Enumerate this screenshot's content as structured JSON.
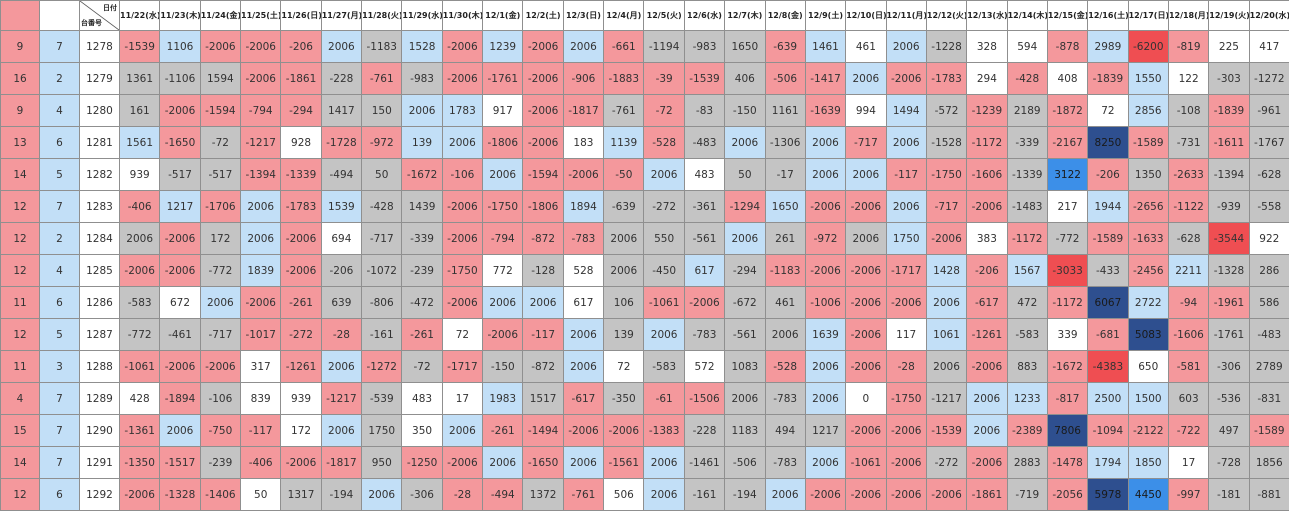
{
  "header": {
    "date_label": "日付",
    "machine_label": "台番号",
    "dates": [
      "11/22(水)",
      "11/23(木)",
      "11/24(金)",
      "11/25(土)",
      "11/26(日)",
      "11/27(月)",
      "11/28(火)",
      "11/29(水)",
      "11/30(木)",
      "12/1(金)",
      "12/2(土)",
      "12/3(日)",
      "12/4(月)",
      "12/5(火)",
      "12/6(水)",
      "12/7(木)",
      "12/8(金)",
      "12/9(土)",
      "12/10(日)",
      "12/11(月)",
      "12/12(火)",
      "12/13(水)",
      "12/14(木)",
      "12/15(金)",
      "12/16(土)",
      "12/17(日)",
      "12/18(月)",
      "12/19(火)",
      "12/20(水)"
    ]
  },
  "colors": {
    "pink": "#f4989c",
    "gray": "#c4c4c4",
    "light_blue": "#c2dff7",
    "white": "#ffffff",
    "red": "#ef4e52",
    "medium_blue": "#3c8fe8",
    "navy": "#2e4f8f"
  },
  "rows": [
    {
      "a": "9",
      "b": "7",
      "machine": "1278",
      "values": [
        "-1539",
        "1106",
        "-2006",
        "-2006",
        "-206",
        "2006",
        "-1183",
        "1528",
        "-2006",
        "1239",
        "-2006",
        "2006",
        "-661",
        "-1194",
        "-983",
        "1650",
        "-639",
        "1461",
        "461",
        "2006",
        "-1228",
        "328",
        "594",
        "-878",
        "2989",
        "-6200",
        "-819",
        "225",
        "417"
      ],
      "colors": [
        "pink",
        "lblue",
        "pink",
        "pink",
        "pink",
        "lblue",
        "gray",
        "lblue",
        "pink",
        "lblue",
        "pink",
        "lblue",
        "pink",
        "gray",
        "gray",
        "gray",
        "pink",
        "lblue",
        "white",
        "lblue",
        "gray",
        "white",
        "white",
        "pink",
        "lblue",
        "red",
        "pink",
        "white",
        "white"
      ]
    },
    {
      "a": "16",
      "b": "2",
      "machine": "1279",
      "values": [
        "1361",
        "-1106",
        "1594",
        "-2006",
        "-1861",
        "-228",
        "-761",
        "-983",
        "-2006",
        "-1761",
        "-2006",
        "-906",
        "-1883",
        "-39",
        "-1539",
        "406",
        "-506",
        "-1417",
        "2006",
        "-2006",
        "-1783",
        "294",
        "-428",
        "408",
        "-1839",
        "1550",
        "122",
        "-303",
        "-1272"
      ],
      "colors": [
        "gray",
        "gray",
        "gray",
        "pink",
        "pink",
        "gray",
        "pink",
        "gray",
        "pink",
        "pink",
        "pink",
        "pink",
        "pink",
        "pink",
        "pink",
        "gray",
        "pink",
        "pink",
        "lblue",
        "pink",
        "pink",
        "white",
        "pink",
        "white",
        "pink",
        "lblue",
        "white",
        "gray",
        "gray"
      ]
    },
    {
      "a": "9",
      "b": "4",
      "machine": "1280",
      "values": [
        "161",
        "-2006",
        "-1594",
        "-794",
        "-294",
        "1417",
        "150",
        "2006",
        "1783",
        "917",
        "-2006",
        "-1817",
        "-761",
        "-72",
        "-83",
        "-150",
        "1161",
        "-1639",
        "994",
        "1494",
        "-572",
        "-1239",
        "2189",
        "-1872",
        "72",
        "2856",
        "-108",
        "-1839",
        "-961"
      ],
      "colors": [
        "gray",
        "pink",
        "pink",
        "pink",
        "pink",
        "gray",
        "gray",
        "lblue",
        "lblue",
        "white",
        "pink",
        "pink",
        "gray",
        "pink",
        "gray",
        "gray",
        "gray",
        "pink",
        "white",
        "lblue",
        "gray",
        "pink",
        "gray",
        "pink",
        "white",
        "lblue",
        "gray",
        "pink",
        "gray"
      ]
    },
    {
      "a": "13",
      "b": "6",
      "machine": "1281",
      "values": [
        "1561",
        "-1650",
        "-72",
        "-1217",
        "928",
        "-1728",
        "-972",
        "139",
        "2006",
        "-1806",
        "-2006",
        "183",
        "1139",
        "-528",
        "-483",
        "2006",
        "-1306",
        "2006",
        "-717",
        "2006",
        "-1528",
        "-1172",
        "-339",
        "-2167",
        "8250",
        "-1589",
        "-731",
        "-1611",
        "-1767"
      ],
      "colors": [
        "lblue",
        "pink",
        "gray",
        "pink",
        "white",
        "pink",
        "pink",
        "lblue",
        "lblue",
        "pink",
        "pink",
        "white",
        "lblue",
        "pink",
        "gray",
        "lblue",
        "gray",
        "lblue",
        "pink",
        "lblue",
        "gray",
        "pink",
        "gray",
        "pink",
        "navy",
        "pink",
        "gray",
        "pink",
        "gray"
      ]
    },
    {
      "a": "14",
      "b": "5",
      "machine": "1282",
      "values": [
        "939",
        "-517",
        "-517",
        "-1394",
        "-1339",
        "-494",
        "50",
        "-1672",
        "-106",
        "2006",
        "-1594",
        "-2006",
        "-50",
        "2006",
        "483",
        "50",
        "-17",
        "2006",
        "2006",
        "-117",
        "-1750",
        "-1606",
        "-1339",
        "3122",
        "-206",
        "1350",
        "-2633",
        "-1394",
        "-628"
      ],
      "colors": [
        "white",
        "gray",
        "gray",
        "pink",
        "pink",
        "gray",
        "gray",
        "pink",
        "pink",
        "lblue",
        "pink",
        "pink",
        "pink",
        "lblue",
        "white",
        "gray",
        "gray",
        "lblue",
        "lblue",
        "pink",
        "pink",
        "pink",
        "gray",
        "mblue",
        "pink",
        "gray",
        "pink",
        "gray",
        "gray"
      ]
    },
    {
      "a": "12",
      "b": "7",
      "machine": "1283",
      "values": [
        "-406",
        "1217",
        "-1706",
        "2006",
        "-1783",
        "1539",
        "-428",
        "1439",
        "-2006",
        "-1750",
        "-1806",
        "1894",
        "-639",
        "-272",
        "-361",
        "-1294",
        "1650",
        "-2006",
        "-2006",
        "2006",
        "-717",
        "-2006",
        "-1483",
        "217",
        "1944",
        "-2656",
        "-1122",
        "-939",
        "-558"
      ],
      "colors": [
        "pink",
        "lblue",
        "pink",
        "lblue",
        "pink",
        "lblue",
        "gray",
        "gray",
        "pink",
        "pink",
        "pink",
        "lblue",
        "gray",
        "gray",
        "gray",
        "pink",
        "lblue",
        "pink",
        "pink",
        "lblue",
        "pink",
        "pink",
        "gray",
        "white",
        "lblue",
        "pink",
        "pink",
        "gray",
        "gray"
      ]
    },
    {
      "a": "12",
      "b": "2",
      "machine": "1284",
      "values": [
        "2006",
        "-2006",
        "172",
        "2006",
        "-2006",
        "694",
        "-717",
        "-339",
        "-2006",
        "-794",
        "-872",
        "-783",
        "2006",
        "550",
        "-561",
        "2006",
        "261",
        "-972",
        "2006",
        "1750",
        "-2006",
        "383",
        "-1172",
        "-772",
        "-1589",
        "-1633",
        "-628",
        "-3544",
        "922"
      ],
      "colors": [
        "gray",
        "pink",
        "gray",
        "lblue",
        "pink",
        "white",
        "gray",
        "gray",
        "pink",
        "pink",
        "pink",
        "pink",
        "gray",
        "gray",
        "gray",
        "lblue",
        "gray",
        "pink",
        "gray",
        "lblue",
        "pink",
        "white",
        "pink",
        "gray",
        "pink",
        "pink",
        "gray",
        "red",
        "white"
      ]
    },
    {
      "a": "12",
      "b": "4",
      "machine": "1285",
      "values": [
        "-2006",
        "-2006",
        "-772",
        "1839",
        "-2006",
        "-206",
        "-1072",
        "-239",
        "-1750",
        "772",
        "-128",
        "528",
        "2006",
        "-450",
        "617",
        "-294",
        "-1183",
        "-2006",
        "-2006",
        "-1717",
        "1428",
        "-206",
        "1567",
        "-3033",
        "-433",
        "-2456",
        "2211",
        "-1328",
        "286"
      ],
      "colors": [
        "pink",
        "pink",
        "gray",
        "lblue",
        "pink",
        "gray",
        "gray",
        "gray",
        "pink",
        "white",
        "gray",
        "white",
        "gray",
        "gray",
        "lblue",
        "gray",
        "pink",
        "pink",
        "pink",
        "pink",
        "lblue",
        "pink",
        "lblue",
        "red",
        "gray",
        "pink",
        "lblue",
        "gray",
        "gray"
      ]
    },
    {
      "a": "11",
      "b": "6",
      "machine": "1286",
      "values": [
        "-583",
        "672",
        "2006",
        "-2006",
        "-261",
        "639",
        "-806",
        "-472",
        "-2006",
        "2006",
        "2006",
        "617",
        "106",
        "-1061",
        "-2006",
        "-672",
        "461",
        "-1006",
        "-2006",
        "-2006",
        "2006",
        "-617",
        "472",
        "-1172",
        "6067",
        "2722",
        "-94",
        "-1961",
        "586"
      ],
      "colors": [
        "gray",
        "white",
        "lblue",
        "pink",
        "pink",
        "gray",
        "gray",
        "gray",
        "pink",
        "lblue",
        "lblue",
        "white",
        "gray",
        "pink",
        "pink",
        "gray",
        "gray",
        "pink",
        "pink",
        "pink",
        "lblue",
        "pink",
        "gray",
        "pink",
        "navy",
        "lblue",
        "pink",
        "pink",
        "gray"
      ]
    },
    {
      "a": "12",
      "b": "5",
      "machine": "1287",
      "values": [
        "-772",
        "-461",
        "-717",
        "-1017",
        "-272",
        "-28",
        "-161",
        "-261",
        "72",
        "-2006",
        "-117",
        "2006",
        "139",
        "2006",
        "-783",
        "-561",
        "2006",
        "1639",
        "-2006",
        "117",
        "1061",
        "-1261",
        "-583",
        "339",
        "-681",
        "5083",
        "-1606",
        "-1761",
        "-483"
      ],
      "colors": [
        "gray",
        "gray",
        "gray",
        "pink",
        "pink",
        "pink",
        "gray",
        "pink",
        "white",
        "pink",
        "pink",
        "lblue",
        "gray",
        "lblue",
        "gray",
        "gray",
        "gray",
        "lblue",
        "pink",
        "white",
        "lblue",
        "pink",
        "gray",
        "white",
        "pink",
        "navy",
        "pink",
        "gray",
        "gray"
      ]
    },
    {
      "a": "11",
      "b": "3",
      "machine": "1288",
      "values": [
        "-1061",
        "-2006",
        "-2006",
        "317",
        "-1261",
        "2006",
        "-1272",
        "-72",
        "-1717",
        "-150",
        "-872",
        "2006",
        "72",
        "-583",
        "572",
        "1083",
        "-528",
        "2006",
        "-2006",
        "-28",
        "2006",
        "-2006",
        "883",
        "-1672",
        "-4383",
        "650",
        "-581",
        "-306",
        "2789"
      ],
      "colors": [
        "pink",
        "pink",
        "pink",
        "white",
        "pink",
        "lblue",
        "pink",
        "gray",
        "pink",
        "gray",
        "gray",
        "lblue",
        "white",
        "gray",
        "white",
        "gray",
        "pink",
        "lblue",
        "pink",
        "pink",
        "gray",
        "pink",
        "gray",
        "pink",
        "red",
        "white",
        "pink",
        "gray",
        "gray"
      ]
    },
    {
      "a": "4",
      "b": "7",
      "machine": "1289",
      "values": [
        "428",
        "-1894",
        "-106",
        "839",
        "939",
        "-1217",
        "-539",
        "483",
        "17",
        "1983",
        "1517",
        "-617",
        "-350",
        "-61",
        "-1506",
        "2006",
        "-783",
        "2006",
        "0",
        "-1750",
        "-1217",
        "2006",
        "1233",
        "-817",
        "2500",
        "1500",
        "603",
        "-536",
        "-831"
      ],
      "colors": [
        "white",
        "pink",
        "gray",
        "white",
        "white",
        "pink",
        "gray",
        "white",
        "white",
        "lblue",
        "gray",
        "pink",
        "gray",
        "pink",
        "pink",
        "gray",
        "gray",
        "lblue",
        "white",
        "pink",
        "gray",
        "lblue",
        "lblue",
        "pink",
        "lblue",
        "lblue",
        "gray",
        "gray",
        "gray"
      ]
    },
    {
      "a": "15",
      "b": "7",
      "machine": "1290",
      "values": [
        "-1361",
        "2006",
        "-750",
        "-117",
        "172",
        "2006",
        "1750",
        "350",
        "2006",
        "-261",
        "-1494",
        "-2006",
        "-2006",
        "-1383",
        "-228",
        "1183",
        "494",
        "1217",
        "-2006",
        "-2006",
        "-1539",
        "2006",
        "-2389",
        "7806",
        "-1094",
        "-2122",
        "-722",
        "497",
        "-1589"
      ],
      "colors": [
        "pink",
        "lblue",
        "pink",
        "pink",
        "white",
        "lblue",
        "gray",
        "white",
        "lblue",
        "pink",
        "pink",
        "pink",
        "pink",
        "pink",
        "gray",
        "gray",
        "gray",
        "gray",
        "pink",
        "pink",
        "pink",
        "lblue",
        "pink",
        "navy",
        "pink",
        "pink",
        "pink",
        "gray",
        "pink"
      ]
    },
    {
      "a": "14",
      "b": "7",
      "machine": "1291",
      "values": [
        "-1350",
        "-1517",
        "-239",
        "-406",
        "-2006",
        "-1817",
        "950",
        "-1250",
        "-2006",
        "2006",
        "-1650",
        "2006",
        "-1561",
        "2006",
        "-1461",
        "-506",
        "-783",
        "2006",
        "-1061",
        "-2006",
        "-272",
        "-2006",
        "2883",
        "-1478",
        "1794",
        "1850",
        "17",
        "-728",
        "1856"
      ],
      "colors": [
        "pink",
        "pink",
        "gray",
        "pink",
        "pink",
        "pink",
        "gray",
        "pink",
        "pink",
        "lblue",
        "pink",
        "lblue",
        "pink",
        "lblue",
        "gray",
        "gray",
        "gray",
        "lblue",
        "pink",
        "pink",
        "gray",
        "pink",
        "gray",
        "pink",
        "lblue",
        "lblue",
        "white",
        "gray",
        "gray"
      ]
    },
    {
      "a": "12",
      "b": "6",
      "machine": "1292",
      "values": [
        "-2006",
        "-1328",
        "-1406",
        "50",
        "1317",
        "-194",
        "2006",
        "-306",
        "-28",
        "-494",
        "1372",
        "-761",
        "506",
        "2006",
        "-161",
        "-194",
        "2006",
        "-2006",
        "-2006",
        "-2006",
        "-2006",
        "-1861",
        "-719",
        "-2056",
        "5978",
        "4450",
        "-997",
        "-181",
        "-881"
      ],
      "colors": [
        "pink",
        "pink",
        "pink",
        "white",
        "gray",
        "gray",
        "lblue",
        "gray",
        "pink",
        "pink",
        "gray",
        "pink",
        "white",
        "lblue",
        "gray",
        "gray",
        "lblue",
        "pink",
        "pink",
        "pink",
        "pink",
        "pink",
        "gray",
        "pink",
        "navy",
        "mblue",
        "pink",
        "gray",
        "gray"
      ]
    }
  ]
}
